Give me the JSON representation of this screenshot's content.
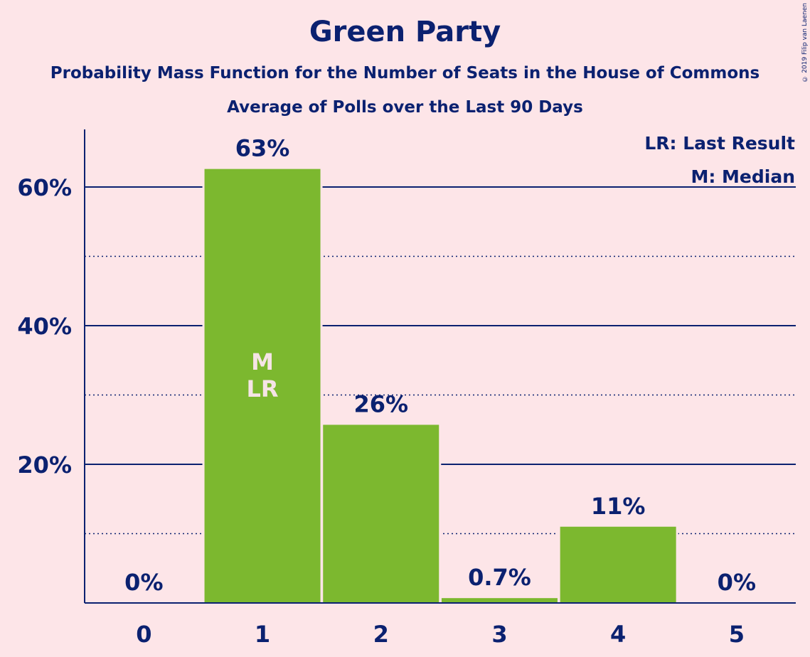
{
  "title": "Green Party",
  "subtitle1": "Probability Mass Function for the Number of Seats in the House of Commons",
  "subtitle2": "Average of Polls over the Last 90 Days",
  "copyright": "© 2019 Filip van Laenen",
  "colors": {
    "background": "#fde5e8",
    "bar": "#7cb82f",
    "text": "#0b2170",
    "marker_text": "#f5e4e6"
  },
  "chart_data": {
    "type": "bar",
    "categories": [
      "0",
      "1",
      "2",
      "3",
      "4",
      "5"
    ],
    "values": [
      0,
      62.6,
      25.7,
      0.7,
      11.0,
      0
    ],
    "value_labels": [
      "0%",
      "63%",
      "26%",
      "0.7%",
      "11%",
      "0%"
    ],
    "y_ticks": [
      20,
      40,
      60
    ],
    "y_tick_labels": [
      "20%",
      "40%",
      "60%"
    ],
    "ylim": [
      0,
      68
    ],
    "grid": true,
    "bar_markers": {
      "1": [
        "M",
        "LR"
      ]
    },
    "legend": [
      "LR: Last Result",
      "M: Median"
    ],
    "legend_position": "top-right"
  }
}
